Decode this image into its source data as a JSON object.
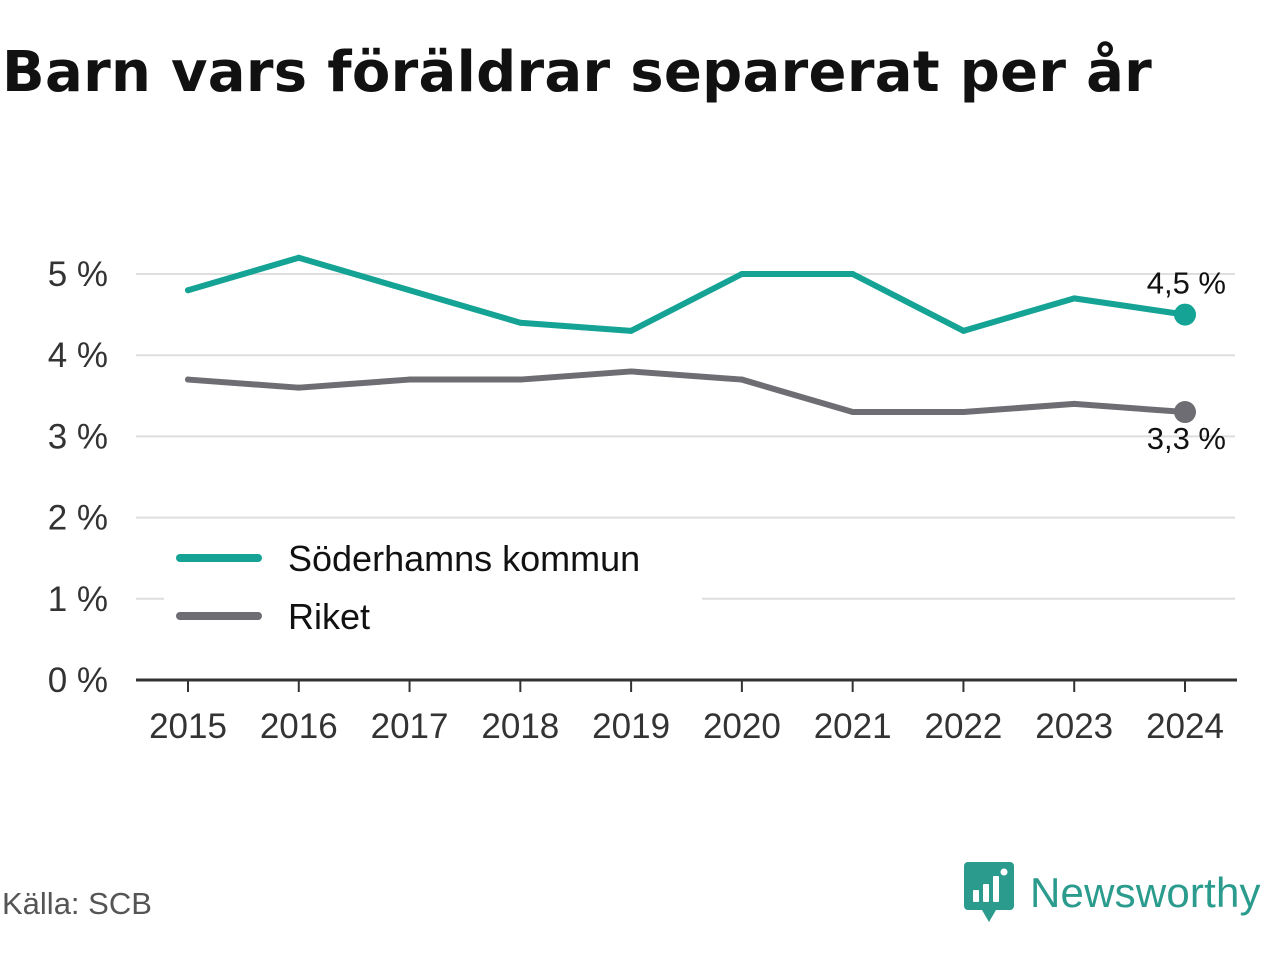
{
  "title": "Barn vars föräldrar separerat per år",
  "source": "Källa: SCB",
  "brand": {
    "name": "Newsworthy",
    "icon": "newsworthy-logo-icon",
    "color": "#2a9b8c"
  },
  "chart_data": {
    "type": "line",
    "categories": [
      "2015",
      "2016",
      "2017",
      "2018",
      "2019",
      "2020",
      "2021",
      "2022",
      "2023",
      "2024"
    ],
    "series": [
      {
        "name": "Söderhamns kommun",
        "color": "#14a394",
        "values": [
          4.8,
          5.2,
          4.8,
          4.4,
          4.3,
          5.0,
          5.0,
          4.3,
          4.7,
          4.5
        ],
        "end_label": "4,5 %"
      },
      {
        "name": "Riket",
        "color": "#6e6d73",
        "values": [
          3.7,
          3.6,
          3.7,
          3.7,
          3.8,
          3.7,
          3.3,
          3.3,
          3.4,
          3.3
        ],
        "end_label": "3,3 %"
      }
    ],
    "y_ticks": [
      {
        "value": 0,
        "label": "0 %"
      },
      {
        "value": 1,
        "label": "1 %"
      },
      {
        "value": 2,
        "label": "2 %"
      },
      {
        "value": 3,
        "label": "3 %"
      },
      {
        "value": 4,
        "label": "4 %"
      },
      {
        "value": 5,
        "label": "5 %"
      }
    ],
    "ylim": [
      0,
      5
    ],
    "grid": true,
    "legend_position": "lower-left"
  }
}
